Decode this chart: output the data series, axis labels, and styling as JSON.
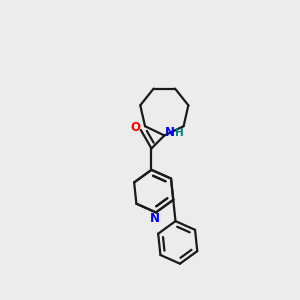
{
  "background_color": "#ececec",
  "bond_color": "#1a1a1a",
  "N_color": "#0000ff",
  "O_color": "#ff0000",
  "H_color": "#008080",
  "line_width": 1.6,
  "figsize": [
    3.0,
    3.0
  ],
  "dpi": 100,
  "xlim": [
    0.0,
    1.0
  ],
  "ylim": [
    0.0,
    1.0
  ]
}
